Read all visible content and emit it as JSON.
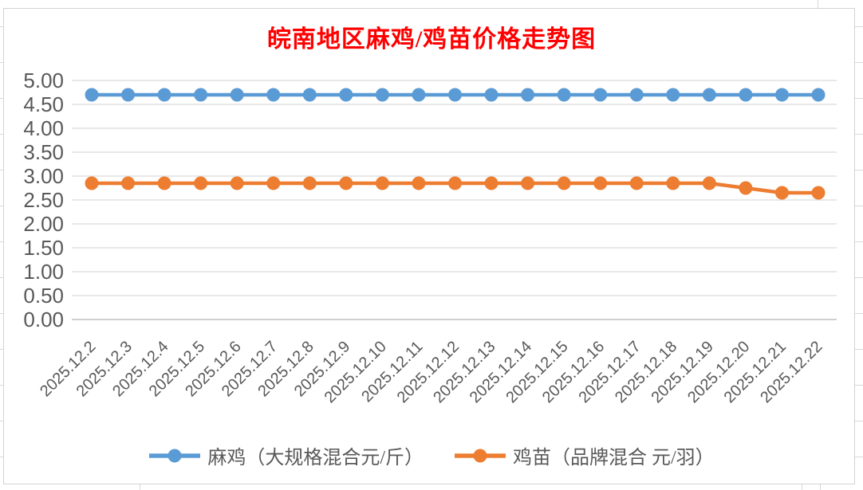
{
  "title": {
    "text": "皖南地区麻鸡/鸡苗价格走势图"
  },
  "palette": {
    "title_color": "#FF0000",
    "axis_label_color": "#595959",
    "legend_text_color": "#595959",
    "gridline_color": "#D9D9D9",
    "axis_line_color": "#BFBFBF",
    "chart_border_color": "#D3D3D3",
    "series_blue": "#5B9BD5",
    "series_orange": "#ED7D31",
    "background": "#FFFFFF"
  },
  "chart_data": {
    "type": "line",
    "title": "皖南地区麻鸡/鸡苗价格走势图",
    "categories": [
      "2025.12.2",
      "2025.12.3",
      "2025.12.4",
      "2025.12.5",
      "2025.12.6",
      "2025.12.7",
      "2025.12.8",
      "2025.12.9",
      "2025.12.10",
      "2025.12.11",
      "2025.12.12",
      "2025.12.13",
      "2025.12.14",
      "2025.12.15",
      "2025.12.16",
      "2025.12.17",
      "2025.12.18",
      "2025.12.19",
      "2025.12.20",
      "2025.12.21",
      "2025.12.22"
    ],
    "series": [
      {
        "name": "麻鸡（大规格混合元/斤）",
        "color": "#5B9BD5",
        "values": [
          4.7,
          4.7,
          4.7,
          4.7,
          4.7,
          4.7,
          4.7,
          4.7,
          4.7,
          4.7,
          4.7,
          4.7,
          4.7,
          4.7,
          4.7,
          4.7,
          4.7,
          4.7,
          4.7,
          4.7,
          4.7
        ]
      },
      {
        "name": "鸡苗（品牌混合 元/羽）",
        "color": "#ED7D31",
        "values": [
          2.85,
          2.85,
          2.85,
          2.85,
          2.85,
          2.85,
          2.85,
          2.85,
          2.85,
          2.85,
          2.85,
          2.85,
          2.85,
          2.85,
          2.85,
          2.85,
          2.85,
          2.85,
          2.75,
          2.65,
          2.65
        ]
      }
    ],
    "xlabel": "",
    "ylabel": "",
    "ylim": [
      0.0,
      5.0
    ],
    "ytick_step": 0.5,
    "ytick_labels": [
      "0.00",
      "0.50",
      "1.00",
      "1.50",
      "2.00",
      "2.50",
      "3.00",
      "3.50",
      "4.00",
      "4.50",
      "5.00"
    ],
    "grid": true,
    "legend_position": "bottom",
    "x_label_rotation_deg": 45
  }
}
